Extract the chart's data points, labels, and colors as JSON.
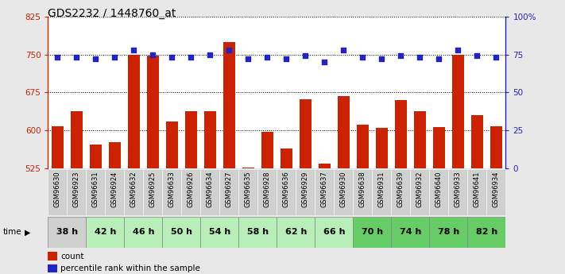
{
  "title": "GDS2232 / 1448760_at",
  "samples": [
    "GSM96630",
    "GSM96923",
    "GSM96631",
    "GSM96924",
    "GSM96632",
    "GSM96925",
    "GSM96633",
    "GSM96926",
    "GSM96634",
    "GSM96927",
    "GSM96635",
    "GSM96928",
    "GSM96636",
    "GSM96929",
    "GSM96637",
    "GSM96930",
    "GSM96638",
    "GSM96931",
    "GSM96639",
    "GSM96932",
    "GSM96640",
    "GSM96933",
    "GSM96641",
    "GSM96934"
  ],
  "counts": [
    608,
    638,
    572,
    577,
    750,
    748,
    618,
    638,
    638,
    775,
    527,
    598,
    565,
    662,
    535,
    668,
    612,
    605,
    660,
    638,
    607,
    750,
    630,
    608
  ],
  "percentiles": [
    73,
    73,
    72,
    73,
    78,
    75,
    73,
    73,
    75,
    78,
    72,
    73,
    72,
    74,
    70,
    78,
    73,
    72,
    74,
    73,
    72,
    78,
    74,
    73
  ],
  "time_groups": [
    {
      "label": "38 h",
      "start": 0,
      "end": 2,
      "color": "#d0d0d0"
    },
    {
      "label": "42 h",
      "start": 2,
      "end": 4,
      "color": "#b8eeb8"
    },
    {
      "label": "46 h",
      "start": 4,
      "end": 6,
      "color": "#b8eeb8"
    },
    {
      "label": "50 h",
      "start": 6,
      "end": 8,
      "color": "#b8eeb8"
    },
    {
      "label": "54 h",
      "start": 8,
      "end": 10,
      "color": "#b8eeb8"
    },
    {
      "label": "58 h",
      "start": 10,
      "end": 12,
      "color": "#b8eeb8"
    },
    {
      "label": "62 h",
      "start": 12,
      "end": 14,
      "color": "#b8eeb8"
    },
    {
      "label": "66 h",
      "start": 14,
      "end": 16,
      "color": "#b8eeb8"
    },
    {
      "label": "70 h",
      "start": 16,
      "end": 18,
      "color": "#66cc66"
    },
    {
      "label": "74 h",
      "start": 18,
      "end": 20,
      "color": "#66cc66"
    },
    {
      "label": "78 h",
      "start": 20,
      "end": 22,
      "color": "#66cc66"
    },
    {
      "label": "82 h",
      "start": 22,
      "end": 24,
      "color": "#66cc66"
    }
  ],
  "ylim_left": [
    525,
    825
  ],
  "ylim_right": [
    0,
    100
  ],
  "yticks_left": [
    525,
    600,
    675,
    750,
    825
  ],
  "yticks_right": [
    0,
    25,
    50,
    75,
    100
  ],
  "bar_color": "#cc2200",
  "dot_color": "#2222cc",
  "bg_color": "#e8e8e8",
  "plot_bg": "#ffffff",
  "title_fontsize": 10,
  "sample_label_fontsize": 6,
  "time_label_fontsize": 8
}
